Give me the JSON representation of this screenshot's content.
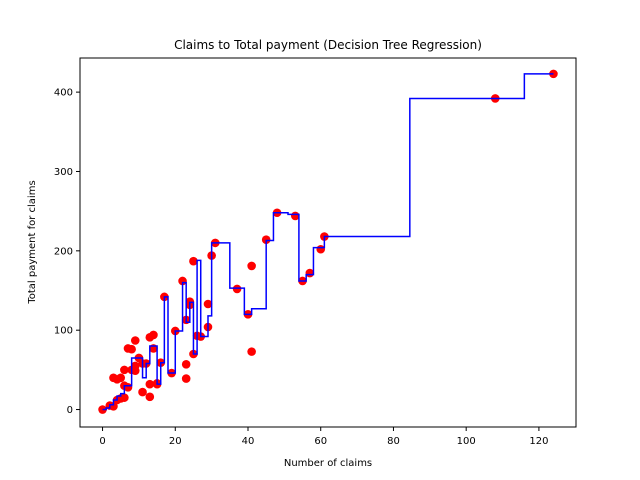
{
  "chart_data": {
    "type": "scatter",
    "title": "Claims to Total payment (Decision Tree Regression)",
    "xlabel": "Number of claims",
    "ylabel": "Total payment for claims",
    "xlim": [
      -6.2,
      130.2
    ],
    "ylim": [
      -22,
      443
    ],
    "xticks": [
      0,
      20,
      40,
      60,
      80,
      100,
      120
    ],
    "yticks": [
      0,
      100,
      200,
      300,
      400
    ],
    "grid": false,
    "legend": "none",
    "colors": {
      "points": "#ff0000",
      "line": "#0000ff"
    },
    "series": [
      {
        "kind": "points",
        "x": [
          0,
          2,
          3,
          3,
          4,
          4,
          5,
          5,
          6,
          6,
          6,
          7,
          7,
          8,
          8,
          9,
          9,
          9,
          10,
          11,
          11,
          12,
          13,
          13,
          13,
          14,
          14,
          15,
          15,
          16,
          17,
          19,
          20,
          22,
          23,
          23,
          23,
          24,
          24,
          25,
          25,
          26,
          27,
          29,
          29,
          30,
          31,
          37,
          40,
          41,
          41,
          45,
          48,
          53,
          55,
          57,
          60,
          61,
          108,
          124
        ],
        "y": [
          0,
          5,
          4,
          40,
          38,
          12,
          14,
          40,
          15,
          30,
          50,
          28,
          77,
          76,
          50,
          49,
          87,
          55,
          65,
          22,
          58,
          58,
          91,
          32,
          16,
          94,
          77,
          33,
          32,
          59,
          142,
          46,
          99,
          162,
          39,
          113,
          57,
          136,
          132,
          70,
          187,
          93,
          92,
          133,
          104,
          194,
          210,
          152,
          120,
          181,
          73,
          214,
          248,
          244,
          162,
          172,
          202,
          218,
          392,
          423
        ]
      },
      {
        "kind": "step-line",
        "x": [
          0,
          1,
          2,
          3,
          4,
          5,
          6,
          7,
          8,
          9,
          10,
          11,
          12,
          13,
          14,
          15,
          16,
          17,
          18,
          19,
          20,
          21,
          22,
          23,
          24,
          25,
          26,
          27,
          28,
          29,
          30,
          34,
          35,
          38,
          39,
          41,
          43,
          45,
          47,
          51,
          54,
          56,
          58,
          59,
          61,
          84.5,
          108,
          116,
          124
        ],
        "y": [
          0,
          2,
          6,
          12,
          17,
          20,
          30,
          30,
          65,
          65,
          65,
          40,
          58,
          80,
          80,
          32,
          59,
          142,
          46,
          46,
          99,
          99,
          160,
          110,
          135,
          70,
          188,
          92,
          92,
          118,
          210,
          210,
          153,
          153,
          120,
          127,
          127,
          213,
          248,
          246,
          162,
          170,
          204,
          204,
          218,
          392,
          392,
          423,
          423
        ]
      }
    ]
  }
}
